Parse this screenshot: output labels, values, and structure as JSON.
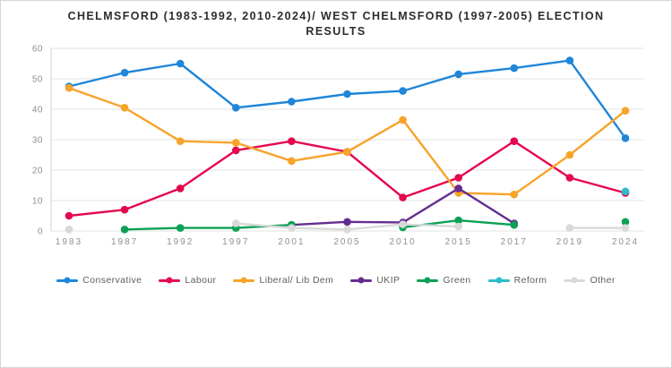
{
  "chart_data": {
    "type": "line",
    "title": "CHELMSFORD (1983-1992, 2010-2024)/ WEST CHELMSFORD (1997-2005) ELECTION RESULTS",
    "categories": [
      "1983",
      "1987",
      "1992",
      "1997",
      "2001",
      "2005",
      "2010",
      "2015",
      "2017",
      "2019",
      "2024"
    ],
    "xlabel": "",
    "ylabel": "",
    "ylim": [
      0,
      60
    ],
    "yticks": [
      0,
      10,
      20,
      30,
      40,
      50,
      60
    ],
    "grid": "horizontal",
    "legend_position": "bottom",
    "series": [
      {
        "name": "Conservative",
        "color": "#1f86d9",
        "values": [
          47.5,
          52,
          55,
          40.5,
          42.5,
          45,
          46,
          51.5,
          53.5,
          56,
          30.5
        ]
      },
      {
        "name": "Labour",
        "color": "#e4084e",
        "values": [
          5,
          7,
          14,
          26.5,
          29.5,
          26,
          11,
          17.5,
          29.5,
          17.5,
          12.5
        ]
      },
      {
        "name": "Liberal/ Lib Dem",
        "color": "#f7a42a",
        "values": [
          47,
          40.5,
          29.5,
          29,
          23,
          26,
          36.5,
          12.5,
          12,
          25,
          39.5
        ]
      },
      {
        "name": "UKIP",
        "color": "#652d90",
        "values": [
          null,
          null,
          null,
          null,
          2,
          3,
          2.8,
          14,
          2.5,
          null,
          null
        ]
      },
      {
        "name": "Green",
        "color": "#0ba155",
        "values": [
          null,
          0.5,
          1,
          1,
          2,
          null,
          1.2,
          3.5,
          2,
          null,
          3
        ]
      },
      {
        "name": "Reform",
        "color": "#2ebcca",
        "values": [
          null,
          null,
          null,
          null,
          null,
          null,
          null,
          null,
          null,
          null,
          13
        ]
      },
      {
        "name": "Other",
        "color": "#d9d9d9",
        "values": [
          0.5,
          null,
          null,
          2.5,
          1,
          0.5,
          2.2,
          1.5,
          null,
          1,
          1
        ]
      }
    ],
    "colors": {
      "grid": "#e3e3e3",
      "axis": "#d2d2d2",
      "tick_label": "#8f8f8f",
      "title_text": "#2d2d2d"
    }
  }
}
